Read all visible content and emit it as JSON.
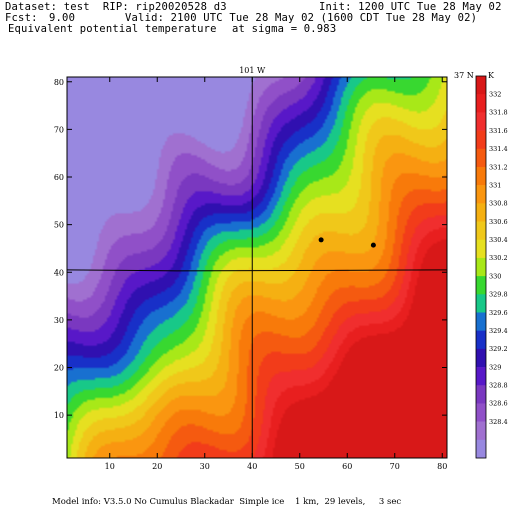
{
  "header": {
    "dataset_line": "Dataset: test  RIP: rip20020528 d3",
    "init_line": "Init: 1200 UTC Tue 28 May 02",
    "fcst_label": "Fcst:",
    "fcst_value": "9.00",
    "valid_line": "Valid: 2100 UTC Tue 28 May 02 (1600 CDT Tue 28 May 02)",
    "field_line": "Equivalent potential temperature",
    "sigma_line": "at sigma = 0.983"
  },
  "footer": "Model info: V3.5.0 No Cumulus Blackadar  Simple ice    1 km,  29 levels,     3 sec",
  "chart_data": {
    "type": "heatmap",
    "title": "Equivalent potential temperature",
    "xlabel": "",
    "ylabel": "",
    "xlim": [
      1,
      81
    ],
    "ylim": [
      1,
      81
    ],
    "x_ticks": [
      10,
      20,
      30,
      40,
      50,
      60,
      70,
      80
    ],
    "y_ticks": [
      10,
      20,
      30,
      40,
      50,
      60,
      70,
      80
    ],
    "annotations": [
      {
        "text": "101 W",
        "x": 40,
        "y": 81
      },
      {
        "text": "37 N",
        "x": 81,
        "y": 40.5
      }
    ],
    "reference_lines": {
      "longitude_x": 40,
      "latitude_y": 40.5
    },
    "colorbar": {
      "unit": "K",
      "levels": [
        332,
        331.8,
        331.6,
        331.4,
        331.2,
        331,
        330.8,
        330.6,
        330.4,
        330.2,
        330,
        329.8,
        329.6,
        329.4,
        329.2,
        329,
        328.8,
        328.6,
        328.4
      ],
      "colors": [
        "#d81818",
        "#e81f1f",
        "#f02e2e",
        "#f23c1a",
        "#f55a10",
        "#f87a0a",
        "#fa9610",
        "#f5b012",
        "#f0c81a",
        "#e6e020",
        "#a8e818",
        "#38d830",
        "#18c888",
        "#1870d0",
        "#1830c8",
        "#3010b0",
        "#5818c8",
        "#7a38c0",
        "#9050c8",
        "#a070d0",
        "#9888e0"
      ]
    },
    "markers": [
      {
        "x": 54.5,
        "y": 46.8
      },
      {
        "x": 65.5,
        "y": 45.7
      }
    ]
  }
}
